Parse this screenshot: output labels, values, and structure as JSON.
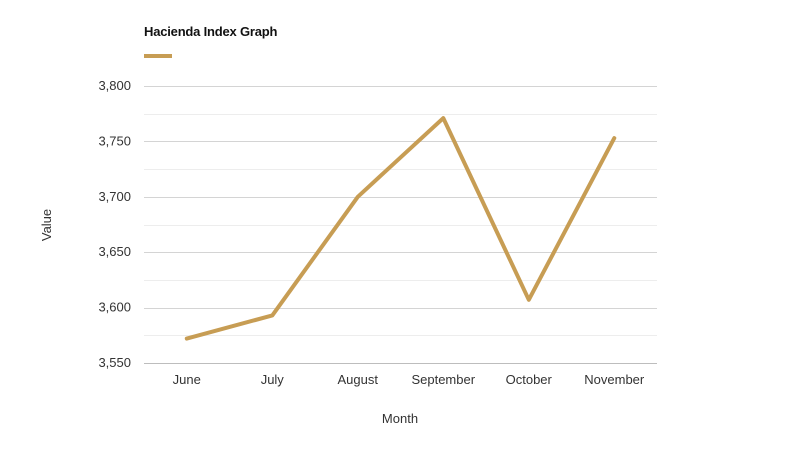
{
  "chart_data": {
    "type": "line",
    "title": "Hacienda Index Graph",
    "xlabel": "Month",
    "ylabel": "Value",
    "categories": [
      "June",
      "July",
      "August",
      "September",
      "October",
      "November"
    ],
    "series": [
      {
        "values": [
          3572,
          3593,
          3700,
          3771,
          3607,
          3753
        ],
        "color": "#c79d54"
      }
    ],
    "ylim": [
      3550,
      3800
    ],
    "yticks": [
      3550,
      3600,
      3650,
      3700,
      3750,
      3800
    ],
    "ytick_labels": [
      "3,550",
      "3,600",
      "3,650",
      "3,700",
      "3,750",
      "3,800"
    ],
    "grid": true,
    "legend": "top-left"
  }
}
